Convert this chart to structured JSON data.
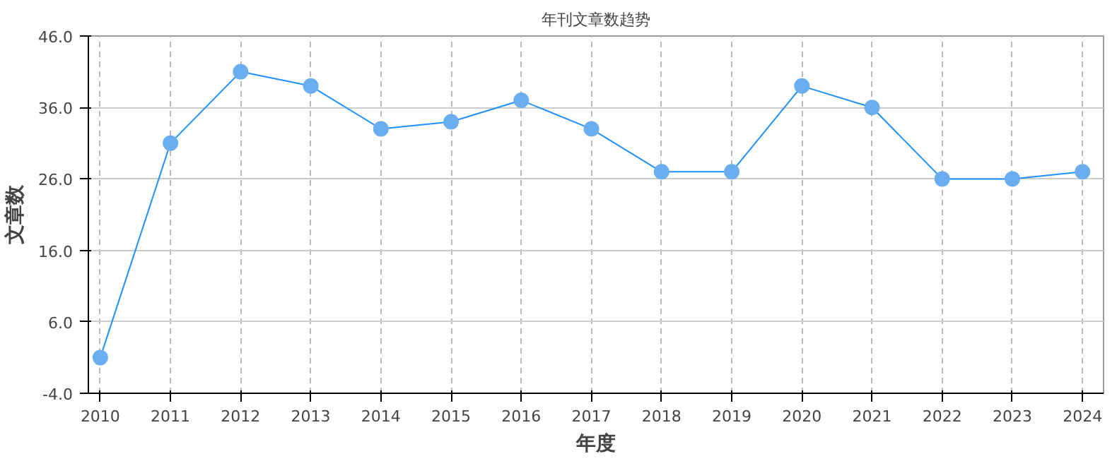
{
  "chart_data": {
    "type": "line",
    "title": "年刊文章数趋势",
    "xlabel": "年度",
    "ylabel": "文章数",
    "x": [
      2010,
      2011,
      2012,
      2013,
      2014,
      2015,
      2016,
      2017,
      2018,
      2019,
      2020,
      2021,
      2022,
      2023,
      2024
    ],
    "series": [
      {
        "color": "#1e90ff",
        "values": [
          1,
          31,
          41,
          39,
          33,
          34,
          37,
          33,
          27,
          27,
          39,
          36,
          26,
          26,
          27
        ]
      }
    ],
    "xlim": [
      2009.83,
      2024.3
    ],
    "xticks": [
      2010,
      2011,
      2012,
      2013,
      2014,
      2015,
      2016,
      2017,
      2018,
      2019,
      2020,
      2021,
      2022,
      2023,
      2024
    ],
    "ylim": [
      -4,
      46
    ],
    "yticks": [
      {
        "value": -4,
        "label": "-4.0"
      },
      {
        "value": 6,
        "label": "6.0"
      },
      {
        "value": 16,
        "label": "16.0"
      },
      {
        "value": 26,
        "label": "26.0"
      },
      {
        "value": 36,
        "label": "36.0"
      },
      {
        "value": 46,
        "label": "46.0"
      }
    ],
    "grid": true,
    "marker": "circle",
    "line_style": "solid"
  }
}
